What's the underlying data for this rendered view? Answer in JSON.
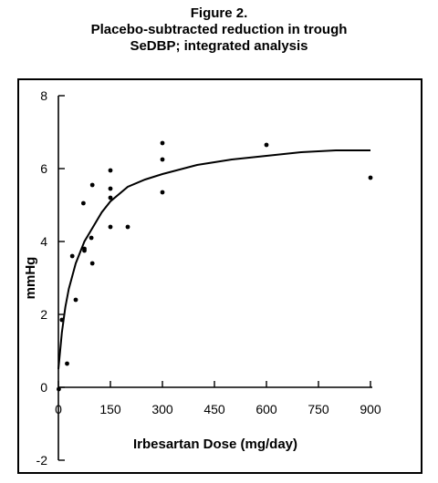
{
  "figure": {
    "label": "Figure 2.",
    "title_line1": "Placebo-subtracted reduction in trough",
    "title_line2": "SeDBP; integrated analysis"
  },
  "chart_data": {
    "type": "scatter",
    "xlabel": "Irbesartan Dose (mg/day)",
    "ylabel": "mmHg",
    "xlim": [
      0,
      900
    ],
    "ylim": [
      -2,
      8
    ],
    "x_ticks": [
      0,
      150,
      300,
      450,
      600,
      750,
      900
    ],
    "y_ticks": [
      -2,
      0,
      2,
      4,
      6,
      8
    ],
    "grid": false,
    "legend": "none",
    "points": [
      {
        "x": 1,
        "y": -0.05
      },
      {
        "x": 10,
        "y": 1.85
      },
      {
        "x": 25,
        "y": 0.65
      },
      {
        "x": 40,
        "y": 3.6
      },
      {
        "x": 50,
        "y": 2.4
      },
      {
        "x": 72,
        "y": 5.05
      },
      {
        "x": 75,
        "y": 3.75
      },
      {
        "x": 75,
        "y": 3.8
      },
      {
        "x": 95,
        "y": 4.1
      },
      {
        "x": 98,
        "y": 3.4
      },
      {
        "x": 98,
        "y": 5.55
      },
      {
        "x": 150,
        "y": 5.95
      },
      {
        "x": 150,
        "y": 5.45
      },
      {
        "x": 150,
        "y": 5.2
      },
      {
        "x": 150,
        "y": 4.4
      },
      {
        "x": 200,
        "y": 4.4
      },
      {
        "x": 300,
        "y": 6.7
      },
      {
        "x": 300,
        "y": 6.25
      },
      {
        "x": 300,
        "y": 5.35
      },
      {
        "x": 600,
        "y": 6.65
      },
      {
        "x": 900,
        "y": 5.75
      }
    ],
    "fit_curve": {
      "x": [
        0,
        5,
        10,
        20,
        30,
        50,
        75,
        100,
        125,
        150,
        200,
        250,
        300,
        400,
        500,
        600,
        700,
        800,
        900
      ],
      "y": [
        0.5,
        1.0,
        1.5,
        2.2,
        2.7,
        3.4,
        4.0,
        4.4,
        4.8,
        5.1,
        5.5,
        5.7,
        5.85,
        6.1,
        6.25,
        6.35,
        6.45,
        6.5,
        6.5
      ]
    }
  }
}
